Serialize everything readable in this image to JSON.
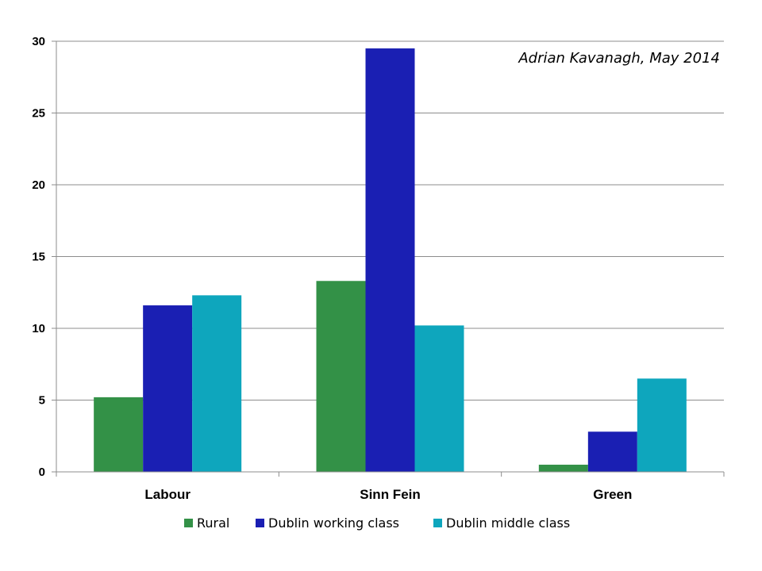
{
  "chart_data": {
    "type": "bar",
    "categories": [
      "Labour",
      "Sinn Fein",
      "Green"
    ],
    "series": [
      {
        "name": "Rural",
        "values": [
          5.2,
          13.3,
          0.5
        ],
        "color": "#339147"
      },
      {
        "name": "Dublin working class",
        "values": [
          11.6,
          29.5,
          2.8
        ],
        "color": "#1a1fb3"
      },
      {
        "name": "Dublin middle class",
        "values": [
          12.3,
          10.2,
          6.5
        ],
        "color": "#0ea6bd"
      }
    ],
    "ylim": [
      0,
      30
    ],
    "yticks": [
      0,
      5,
      10,
      15,
      20,
      25,
      30
    ],
    "grid": true,
    "legend": "bottom",
    "annotation": "Adrian Kavanagh,  May 2014",
    "title": "",
    "xlabel": "",
    "ylabel": ""
  }
}
